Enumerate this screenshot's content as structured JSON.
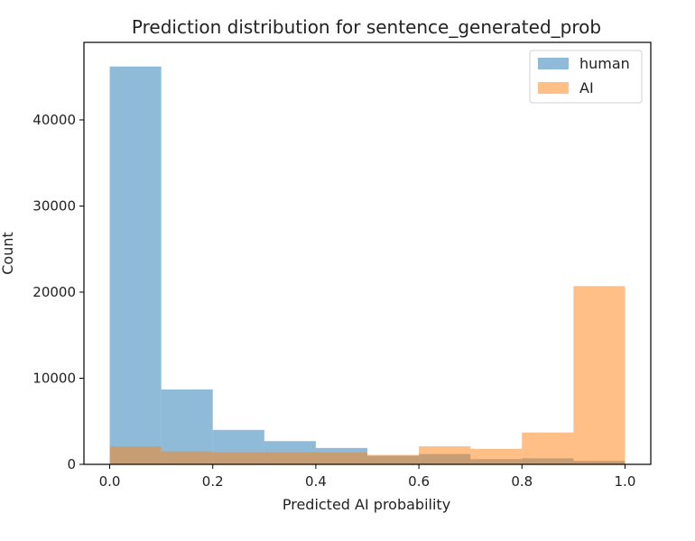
{
  "chart_data": {
    "type": "bar",
    "title": "Prediction distribution for sentence_generated_prob",
    "xlabel": "Predicted AI probability",
    "ylabel": "Count",
    "bin_edges": [
      0.0,
      0.1,
      0.2,
      0.3,
      0.4,
      0.5,
      0.6,
      0.7,
      0.8,
      0.9,
      1.0
    ],
    "xlim": [
      -0.05,
      1.05
    ],
    "ylim": [
      0,
      49000
    ],
    "xticks": [
      0.0,
      0.2,
      0.4,
      0.6,
      0.8,
      1.0
    ],
    "xtick_labels": [
      "0.0",
      "0.2",
      "0.4",
      "0.6",
      "0.8",
      "1.0"
    ],
    "yticks": [
      0,
      10000,
      20000,
      30000,
      40000
    ],
    "ytick_labels": [
      "0",
      "10000",
      "20000",
      "30000",
      "40000"
    ],
    "grid": false,
    "legend_position": "top-right",
    "series": [
      {
        "name": "human",
        "color": "#1f77b4",
        "opacity": 0.5,
        "values": [
          46200,
          8700,
          4000,
          2700,
          1900,
          1000,
          1200,
          600,
          700,
          400
        ]
      },
      {
        "name": "AI",
        "color": "#ff7f0e",
        "opacity": 0.5,
        "values": [
          2100,
          1500,
          1400,
          1400,
          1400,
          1100,
          2100,
          1800,
          3700,
          20700
        ]
      }
    ]
  }
}
